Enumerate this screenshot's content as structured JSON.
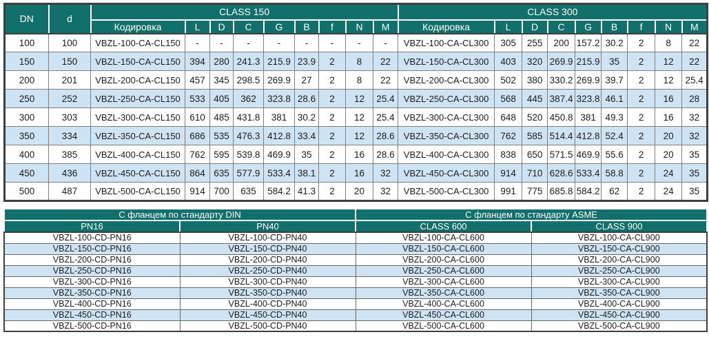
{
  "colors": {
    "header_bg": "#11706B",
    "header_text": "#FFFFFF",
    "row_bg": "#FFFFFF",
    "row_alt_bg": "#CEE3F4",
    "grid_line": "#7F7F7F",
    "outer_border": "#3E3E3E",
    "text": "#1C1C1C"
  },
  "dimensions_table": {
    "corner_headers": {
      "dn": "DN",
      "d": "d"
    },
    "groups": [
      {
        "label": "CLASS 150",
        "code_header": "Кодировка",
        "dim_columns": [
          "L",
          "D",
          "C",
          "G",
          "B",
          "f",
          "N",
          "M"
        ]
      },
      {
        "label": "CLASS 300",
        "code_header": "Кодировка",
        "dim_columns": [
          "L",
          "D",
          "C",
          "G",
          "B",
          "f",
          "N",
          "M"
        ]
      }
    ],
    "rows": [
      {
        "dn": "100",
        "d": "100",
        "cl150": {
          "code": "VBZL-100-CA-CL150",
          "values": [
            "-",
            "-",
            "-",
            "-",
            "-",
            "-",
            "-",
            "-"
          ]
        },
        "cl300": {
          "code": "VBZL-100-CA-CL300",
          "values": [
            "305",
            "255",
            "200",
            "157.2",
            "30.2",
            "2",
            "8",
            "22"
          ]
        }
      },
      {
        "dn": "150",
        "d": "150",
        "cl150": {
          "code": "VBZL-150-CA-CL150",
          "values": [
            "394",
            "280",
            "241.3",
            "215.9",
            "23.9",
            "2",
            "8",
            "22"
          ]
        },
        "cl300": {
          "code": "VBZL-150-CA-CL300",
          "values": [
            "403",
            "320",
            "269.9",
            "215.9",
            "35",
            "2",
            "12",
            "22"
          ]
        }
      },
      {
        "dn": "200",
        "d": "201",
        "cl150": {
          "code": "VBZL-200-CA-CL150",
          "values": [
            "457",
            "345",
            "298.5",
            "269.9",
            "27",
            "2",
            "8",
            "22"
          ]
        },
        "cl300": {
          "code": "VBZL-200-CA-CL300",
          "values": [
            "502",
            "380",
            "330.2",
            "269.9",
            "39.7",
            "2",
            "12",
            "25.4"
          ]
        }
      },
      {
        "dn": "250",
        "d": "252",
        "cl150": {
          "code": "VBZL-250-CA-CL150",
          "values": [
            "533",
            "405",
            "362",
            "323.8",
            "28.6",
            "2",
            "12",
            "25.4"
          ]
        },
        "cl300": {
          "code": "VBZL-250-CA-CL300",
          "values": [
            "568",
            "445",
            "387.4",
            "323.8",
            "46.1",
            "2",
            "16",
            "28"
          ]
        }
      },
      {
        "dn": "300",
        "d": "303",
        "cl150": {
          "code": "VBZL-300-CA-CL150",
          "values": [
            "610",
            "485",
            "431.8",
            "381",
            "30.2",
            "2",
            "12",
            "25.4"
          ]
        },
        "cl300": {
          "code": "VBZL-300-CA-CL300",
          "values": [
            "648",
            "520",
            "450.8",
            "381",
            "49.3",
            "2",
            "16",
            "32"
          ]
        }
      },
      {
        "dn": "350",
        "d": "334",
        "cl150": {
          "code": "VBZL-350-CA-CL150",
          "values": [
            "686",
            "535",
            "476.3",
            "412.8",
            "33.4",
            "2",
            "12",
            "28.6"
          ]
        },
        "cl300": {
          "code": "VBZL-350-CA-CL300",
          "values": [
            "762",
            "585",
            "514.4",
            "412.8",
            "52.4",
            "2",
            "20",
            "32"
          ]
        }
      },
      {
        "dn": "400",
        "d": "385",
        "cl150": {
          "code": "VBZL-400-CA-CL150",
          "values": [
            "762",
            "595",
            "539.8",
            "469.9",
            "35",
            "2",
            "16",
            "28.6"
          ]
        },
        "cl300": {
          "code": "VBZL-400-CA-CL300",
          "values": [
            "838",
            "650",
            "571.5",
            "469.9",
            "55.6",
            "2",
            "20",
            "35"
          ]
        }
      },
      {
        "dn": "450",
        "d": "436",
        "cl150": {
          "code": "VBZL-450-CA-CL150",
          "values": [
            "864",
            "635",
            "577.9",
            "533.4",
            "38.1",
            "2",
            "16",
            "32"
          ]
        },
        "cl300": {
          "code": "VBZL-450-CA-CL300",
          "values": [
            "914",
            "710",
            "628.6",
            "533.4",
            "58.8",
            "2",
            "24",
            "35"
          ]
        }
      },
      {
        "dn": "500",
        "d": "487",
        "cl150": {
          "code": "VBZL-500-CA-CL150",
          "values": [
            "914",
            "700",
            "635",
            "584.2",
            "41.3",
            "2",
            "20",
            "32"
          ]
        },
        "cl300": {
          "code": "VBZL-500-CA-CL300",
          "values": [
            "991",
            "775",
            "685.8",
            "584.2",
            "62",
            "2",
            "24",
            "35"
          ]
        }
      }
    ]
  },
  "flange_table": {
    "groups": [
      {
        "label": "С фланцем по стандарту DIN",
        "columns": [
          "PN16",
          "PN40"
        ]
      },
      {
        "label": "С фланцем по стандарту ASME",
        "columns": [
          "CLASS 600",
          "CLASS 900"
        ]
      }
    ],
    "rows": [
      [
        "VBZL-100-CD-PN16",
        "VBZL-100-CD-PN40",
        "VBZL-100-CA-CL600",
        "VBZL-100-CA-CL900"
      ],
      [
        "VBZL-150-CD-PN16",
        "VBZL-150-CD-PN40",
        "VBZL-150-CA-CL600",
        "VBZL-150-CA-CL900"
      ],
      [
        "VBZL-200-CD-PN16",
        "VBZL-200-CD-PN40",
        "VBZL-200-CA-CL600",
        "VBZL-200-CA-CL900"
      ],
      [
        "VBZL-250-CD-PN16",
        "VBZL-250-CD-PN40",
        "VBZL-250-CA-CL600",
        "VBZL-250-CA-CL900"
      ],
      [
        "VBZL-300-CD-PN16",
        "VBZL-300-CD-PN40",
        "VBZL-300-CA-CL600",
        "VBZL-300-CA-CL900"
      ],
      [
        "VBZL-350-CD-PN16",
        "VBZL-350-CD-PN40",
        "VBZL-350-CA-CL600",
        "VBZL-350-CA-CL900"
      ],
      [
        "VBZL-400-CD-PN16",
        "VBZL-400-CD-PN40",
        "VBZL-400-CA-CL600",
        "VBZL-400-CA-CL900"
      ],
      [
        "VBZL-450-CD-PN16",
        "VBZL-450-CD-PN40",
        "VBZL-450-CA-CL600",
        "VBZL-450-CA-CL900"
      ],
      [
        "VBZL-500-CD-PN16",
        "VBZL-500-CD-PN40",
        "VBZL-500-CA-CL600",
        "VBZL-500-CA-CL900"
      ]
    ]
  }
}
